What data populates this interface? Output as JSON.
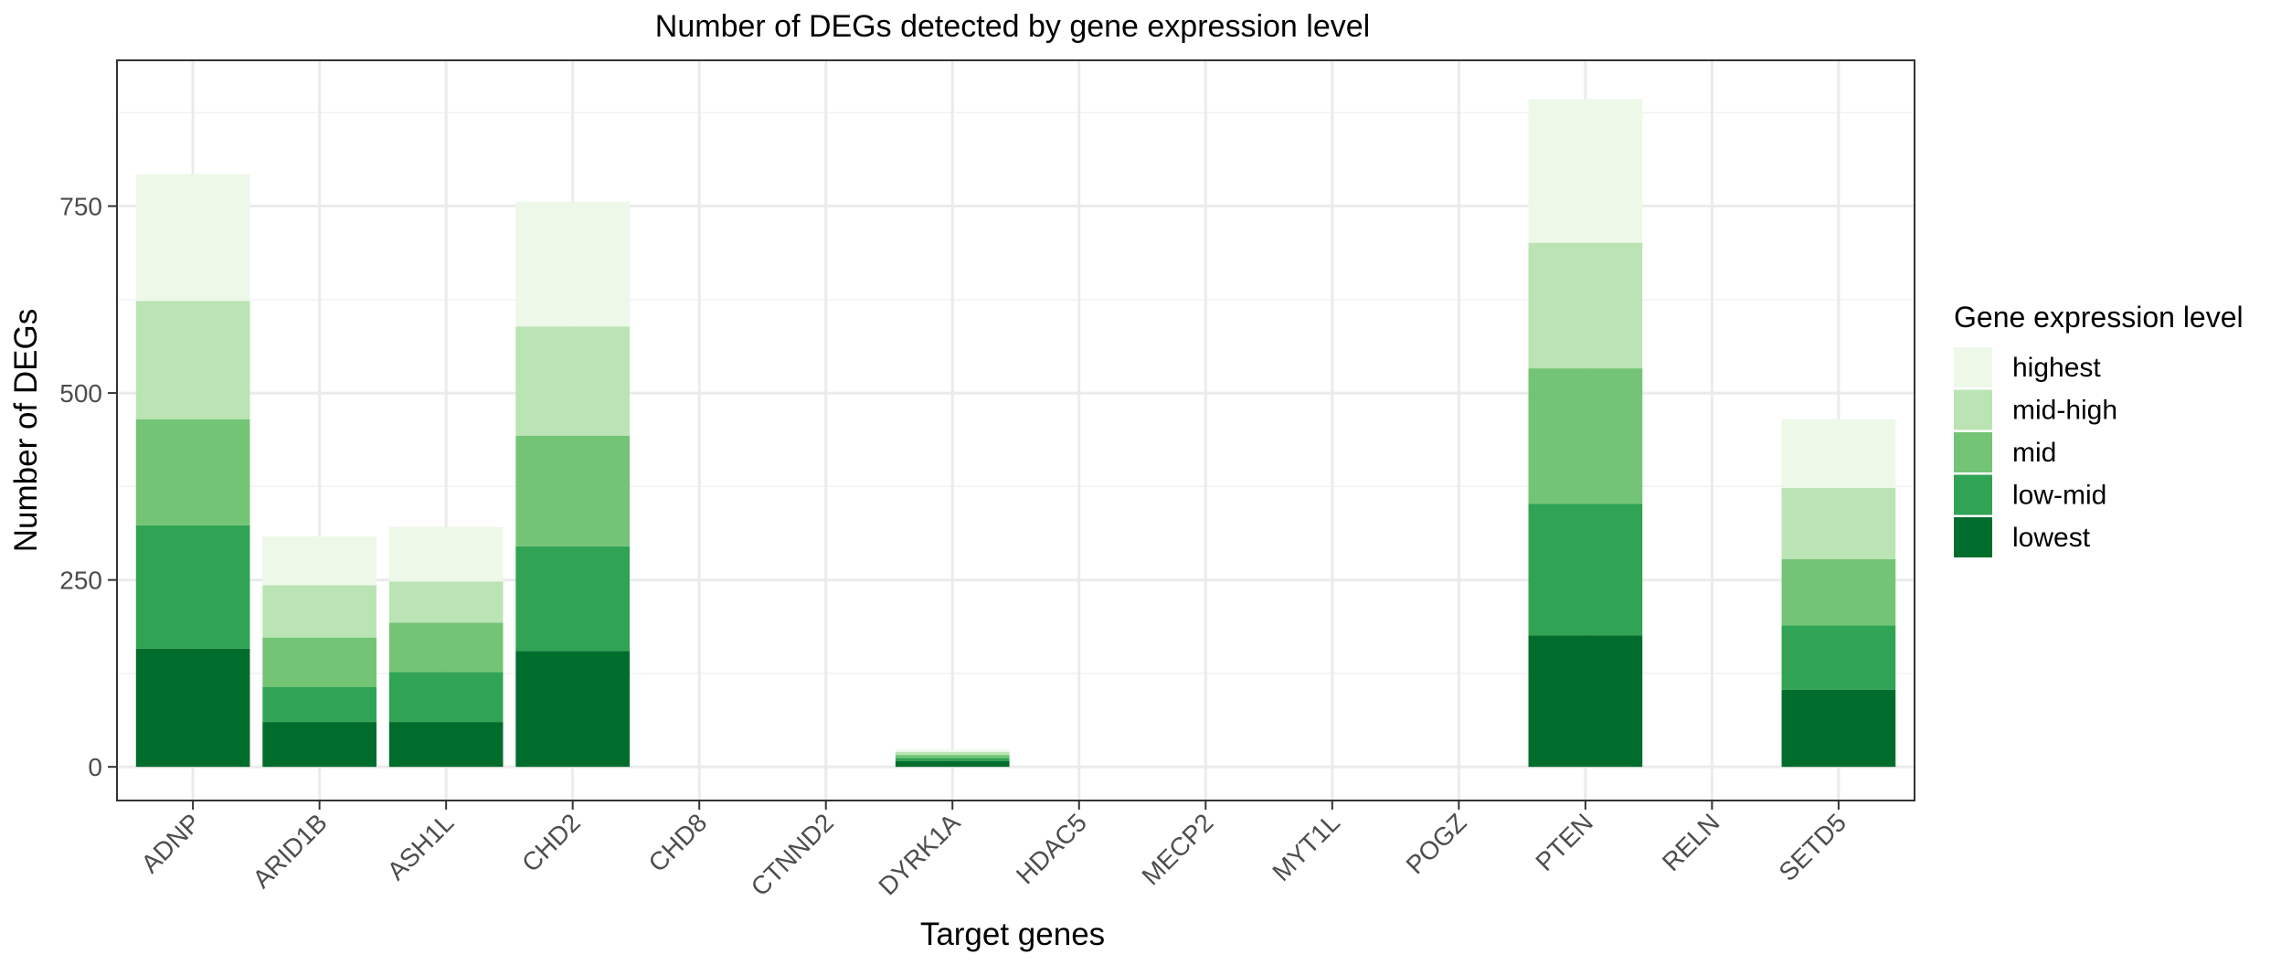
{
  "chart_data": {
    "type": "bar",
    "stacked": true,
    "title": "Number of DEGs detected by gene expression level",
    "xlabel": "Target genes",
    "ylabel": "Number of DEGs",
    "ylim": [
      -45,
      945
    ],
    "yticks": [
      0,
      250,
      500,
      750
    ],
    "grid": true,
    "legend_title": "Gene expression level",
    "legend_position": "right",
    "categories": [
      "ADNP",
      "ARID1B",
      "ASH1L",
      "CHD2",
      "CHD8",
      "CTNND2",
      "DYRK1A",
      "HDAC5",
      "MECP2",
      "MYT1L",
      "POGZ",
      "PTEN",
      "RELN",
      "SETD5"
    ],
    "series": [
      {
        "name": "lowest",
        "color": "#006d2c",
        "values": [
          158,
          60,
          60,
          155,
          0,
          0,
          8,
          0,
          0,
          0,
          0,
          176,
          0,
          103
        ]
      },
      {
        "name": "low-mid",
        "color": "#31a354",
        "values": [
          165,
          47,
          67,
          140,
          0,
          0,
          4,
          0,
          0,
          0,
          0,
          176,
          0,
          86
        ]
      },
      {
        "name": "mid",
        "color": "#74c476",
        "values": [
          142,
          66,
          66,
          148,
          0,
          0,
          4,
          0,
          0,
          0,
          0,
          181,
          0,
          89
        ]
      },
      {
        "name": "mid-high",
        "color": "#bae4b3",
        "values": [
          158,
          70,
          55,
          146,
          0,
          0,
          4,
          0,
          0,
          0,
          0,
          168,
          0,
          95
        ]
      },
      {
        "name": "highest",
        "color": "#edf8e9",
        "values": [
          170,
          65,
          73,
          167,
          0,
          0,
          3,
          0,
          0,
          0,
          0,
          192,
          0,
          92
        ]
      }
    ],
    "legend_order": [
      "highest",
      "mid-high",
      "mid",
      "low-mid",
      "lowest"
    ]
  }
}
